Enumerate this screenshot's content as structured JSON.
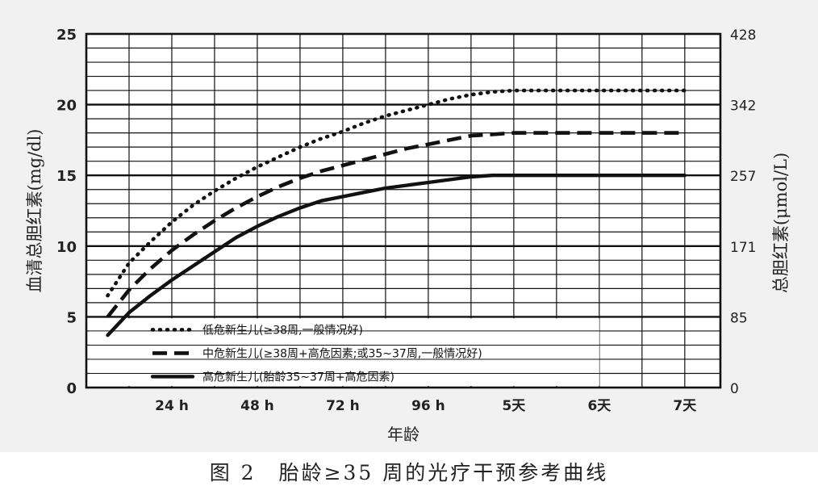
{
  "caption": "图 2　胎龄≥35 周的光疗干预参考曲线",
  "chart_data": {
    "type": "line",
    "xlabel": "年龄",
    "ylabel_left": "血清总胆红素(mg/dl)",
    "ylabel_right": "总胆红素(μmol/L)",
    "x_tick_labels": [
      "24 h",
      "48 h",
      "72 h",
      "96 h",
      "5天",
      "6天",
      "7天"
    ],
    "x_ticks_hours": [
      24,
      48,
      72,
      96,
      120,
      144,
      168
    ],
    "xlim_hours": [
      0,
      178
    ],
    "y_left_ticks": [
      0,
      5,
      10,
      15,
      20,
      25
    ],
    "y_right_tick_labels": [
      "0",
      "85",
      "171",
      "257",
      "342",
      "428"
    ],
    "ylim": [
      0,
      25
    ],
    "grid": true,
    "legend_position": "bottom-left",
    "series": [
      {
        "name": "低危新生儿(≥38周,一般情况好)",
        "style": "dotted",
        "x": [
          6,
          12,
          18,
          24,
          30,
          36,
          42,
          48,
          54,
          60,
          66,
          72,
          78,
          84,
          90,
          96,
          102,
          108,
          114,
          120,
          132,
          144,
          156,
          168
        ],
        "y": [
          6.5,
          8.8,
          10.3,
          11.7,
          12.9,
          13.9,
          14.8,
          15.6,
          16.3,
          17.0,
          17.6,
          18.1,
          18.7,
          19.2,
          19.6,
          20.0,
          20.4,
          20.7,
          20.9,
          21.0,
          21.0,
          21.0,
          21.0,
          21.0
        ]
      },
      {
        "name": "中危新生儿(≥38周+高危因素;或35~37周,一般情况好)",
        "style": "dashed",
        "x": [
          6,
          12,
          18,
          24,
          30,
          36,
          42,
          48,
          54,
          60,
          66,
          72,
          78,
          84,
          90,
          96,
          102,
          108,
          114,
          120,
          132,
          144,
          156,
          168
        ],
        "y": [
          5.0,
          6.9,
          8.4,
          9.7,
          10.8,
          11.8,
          12.7,
          13.5,
          14.2,
          14.8,
          15.3,
          15.7,
          16.1,
          16.5,
          16.9,
          17.2,
          17.5,
          17.8,
          17.9,
          18.0,
          18.0,
          18.0,
          18.0,
          18.0
        ]
      },
      {
        "name": "高危新生儿(胎龄35~37周+高危因素)",
        "style": "solid",
        "x": [
          6,
          12,
          18,
          24,
          30,
          36,
          42,
          48,
          54,
          60,
          66,
          72,
          78,
          84,
          90,
          96,
          102,
          108,
          114,
          120,
          132,
          144,
          156,
          168
        ],
        "y": [
          3.7,
          5.3,
          6.5,
          7.6,
          8.6,
          9.6,
          10.6,
          11.4,
          12.1,
          12.7,
          13.2,
          13.5,
          13.8,
          14.1,
          14.3,
          14.5,
          14.7,
          14.9,
          15.0,
          15.0,
          15.0,
          15.0,
          15.0,
          15.0
        ]
      }
    ]
  }
}
